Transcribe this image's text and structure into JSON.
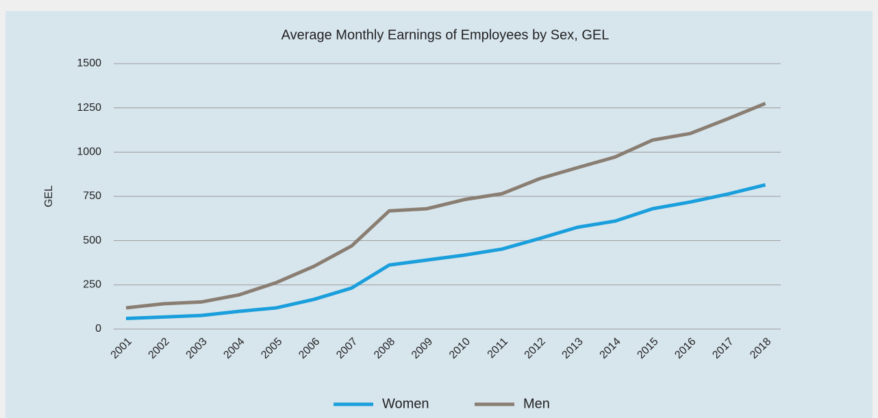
{
  "chart_data": {
    "type": "line",
    "title": "Average Monthly Earnings of Employees by Sex, GEL",
    "ylabel": "GEL",
    "categories": [
      "2001",
      "2002",
      "2003",
      "2004",
      "2005",
      "2006",
      "2007",
      "2008",
      "2009",
      "2010",
      "2011",
      "2012",
      "2013",
      "2014",
      "2015",
      "2016",
      "2017",
      "2018"
    ],
    "series": [
      {
        "name": "Women",
        "color": "#1a9fdc",
        "values": [
          60,
          68,
          77,
          100,
          120,
          168,
          232,
          362,
          390,
          418,
          452,
          512,
          575,
          610,
          680,
          718,
          763,
          815
        ]
      },
      {
        "name": "Men",
        "color": "#8a7e72",
        "values": [
          120,
          143,
          153,
          193,
          263,
          355,
          470,
          668,
          680,
          732,
          765,
          850,
          912,
          972,
          1068,
          1105,
          1188,
          1275
        ]
      }
    ],
    "ylim": [
      0,
      1500
    ],
    "yticks": [
      0,
      250,
      500,
      750,
      1000,
      1250,
      1500
    ],
    "grid": true,
    "legend": "bottom"
  }
}
